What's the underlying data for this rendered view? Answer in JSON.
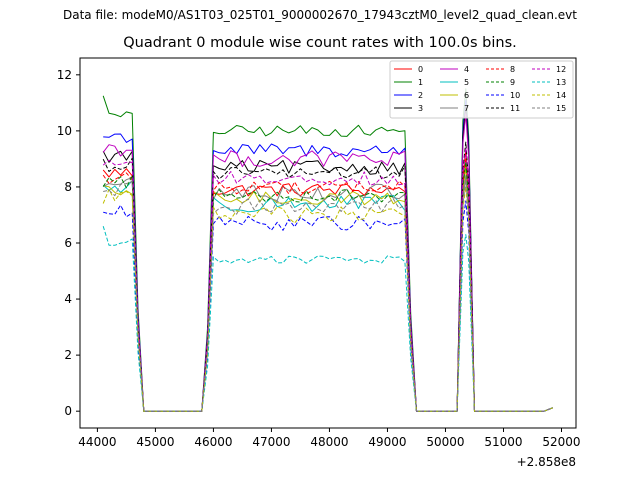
{
  "header": {
    "suptitle": "Data file: modeM0/AS1T03_025T01_9000002670_17943cztM0_level2_quad_clean.evt",
    "title": "Quadrant 0 module wise count rates with 100.0s bins."
  },
  "chart_data": {
    "type": "line",
    "title": "Quadrant 0 module wise count rates with 100.0s bins.",
    "xlabel": "",
    "ylabel": "",
    "x_offset_label": "+2.858e8",
    "xlim": [
      43700,
      52250
    ],
    "ylim": [
      -0.6,
      12.6
    ],
    "x_ticks": [
      44000,
      45000,
      46000,
      47000,
      48000,
      49000,
      50000,
      51000,
      52000
    ],
    "y_ticks": [
      0,
      2,
      4,
      6,
      8,
      10,
      12
    ],
    "grid": false,
    "legend_position": "top-right",
    "legend_columns": 4,
    "segments": {
      "seg1": [
        44100,
        44600
      ],
      "seg2": [
        45900,
        49300
      ],
      "spike": [
        50300,
        50400
      ]
    },
    "series": [
      {
        "name": "0",
        "color": "#ff0000",
        "dash": "solid",
        "seg1": 8.5,
        "seg2": 7.9,
        "noise": 0.25,
        "spike": 9.3
      },
      {
        "name": "1",
        "color": "#008000",
        "dash": "solid",
        "seg1": 10.5,
        "seg2": 10.0,
        "noise": 0.2,
        "spike": 11.5,
        "seg1_start": 11.25
      },
      {
        "name": "2",
        "color": "#0000ff",
        "dash": "solid",
        "seg1": 9.8,
        "seg2": 9.3,
        "noise": 0.25,
        "spike": 11.1
      },
      {
        "name": "3",
        "color": "#000000",
        "dash": "solid",
        "seg1": 9.1,
        "seg2": 8.7,
        "noise": 0.25,
        "spike": 10.9
      },
      {
        "name": "4",
        "color": "#bf00bf",
        "dash": "solid",
        "seg1": 9.4,
        "seg2": 9.0,
        "noise": 0.3,
        "spike": 10.6
      },
      {
        "name": "5",
        "color": "#00bfbf",
        "dash": "solid",
        "seg1": 8.0,
        "seg2": 7.4,
        "noise": 0.3,
        "spike": 8.8
      },
      {
        "name": "6",
        "color": "#bfbf00",
        "dash": "solid",
        "seg1": 7.8,
        "seg2": 7.6,
        "noise": 0.25,
        "spike": 8.7
      },
      {
        "name": "7",
        "color": "#808080",
        "dash": "solid",
        "seg1": 8.1,
        "seg2": 7.8,
        "noise": 0.3,
        "spike": 8.4
      },
      {
        "name": "8",
        "color": "#ff0000",
        "dash": "dashed",
        "seg1": 8.3,
        "seg2": 8.0,
        "noise": 0.25,
        "spike": 9.0
      },
      {
        "name": "9",
        "color": "#008000",
        "dash": "dashed",
        "seg1": 8.2,
        "seg2": 7.7,
        "noise": 0.25,
        "spike": 8.9
      },
      {
        "name": "10",
        "color": "#0000ff",
        "dash": "dashed",
        "seg1": 7.1,
        "seg2": 6.7,
        "noise": 0.25,
        "spike": 7.5
      },
      {
        "name": "11",
        "color": "#000000",
        "dash": "dashed",
        "seg1": 8.8,
        "seg2": 8.5,
        "noise": 0.25,
        "spike": 9.6
      },
      {
        "name": "12",
        "color": "#bf00bf",
        "dash": "dashed",
        "seg1": 8.9,
        "seg2": 8.3,
        "noise": 0.25,
        "spike": 9.4
      },
      {
        "name": "13",
        "color": "#00bfbf",
        "dash": "dashed",
        "seg1": 6.0,
        "seg2": 5.4,
        "noise": 0.15,
        "spike": 6.3,
        "seg1_start": 6.6
      },
      {
        "name": "14",
        "color": "#bfbf00",
        "dash": "dashed",
        "seg1": 7.7,
        "seg2": 7.0,
        "noise": 0.3,
        "spike": 8.0
      },
      {
        "name": "15",
        "color": "#808080",
        "dash": "dashed",
        "seg1": 7.9,
        "seg2": 7.3,
        "noise": 0.3,
        "spike": 8.2
      }
    ]
  }
}
